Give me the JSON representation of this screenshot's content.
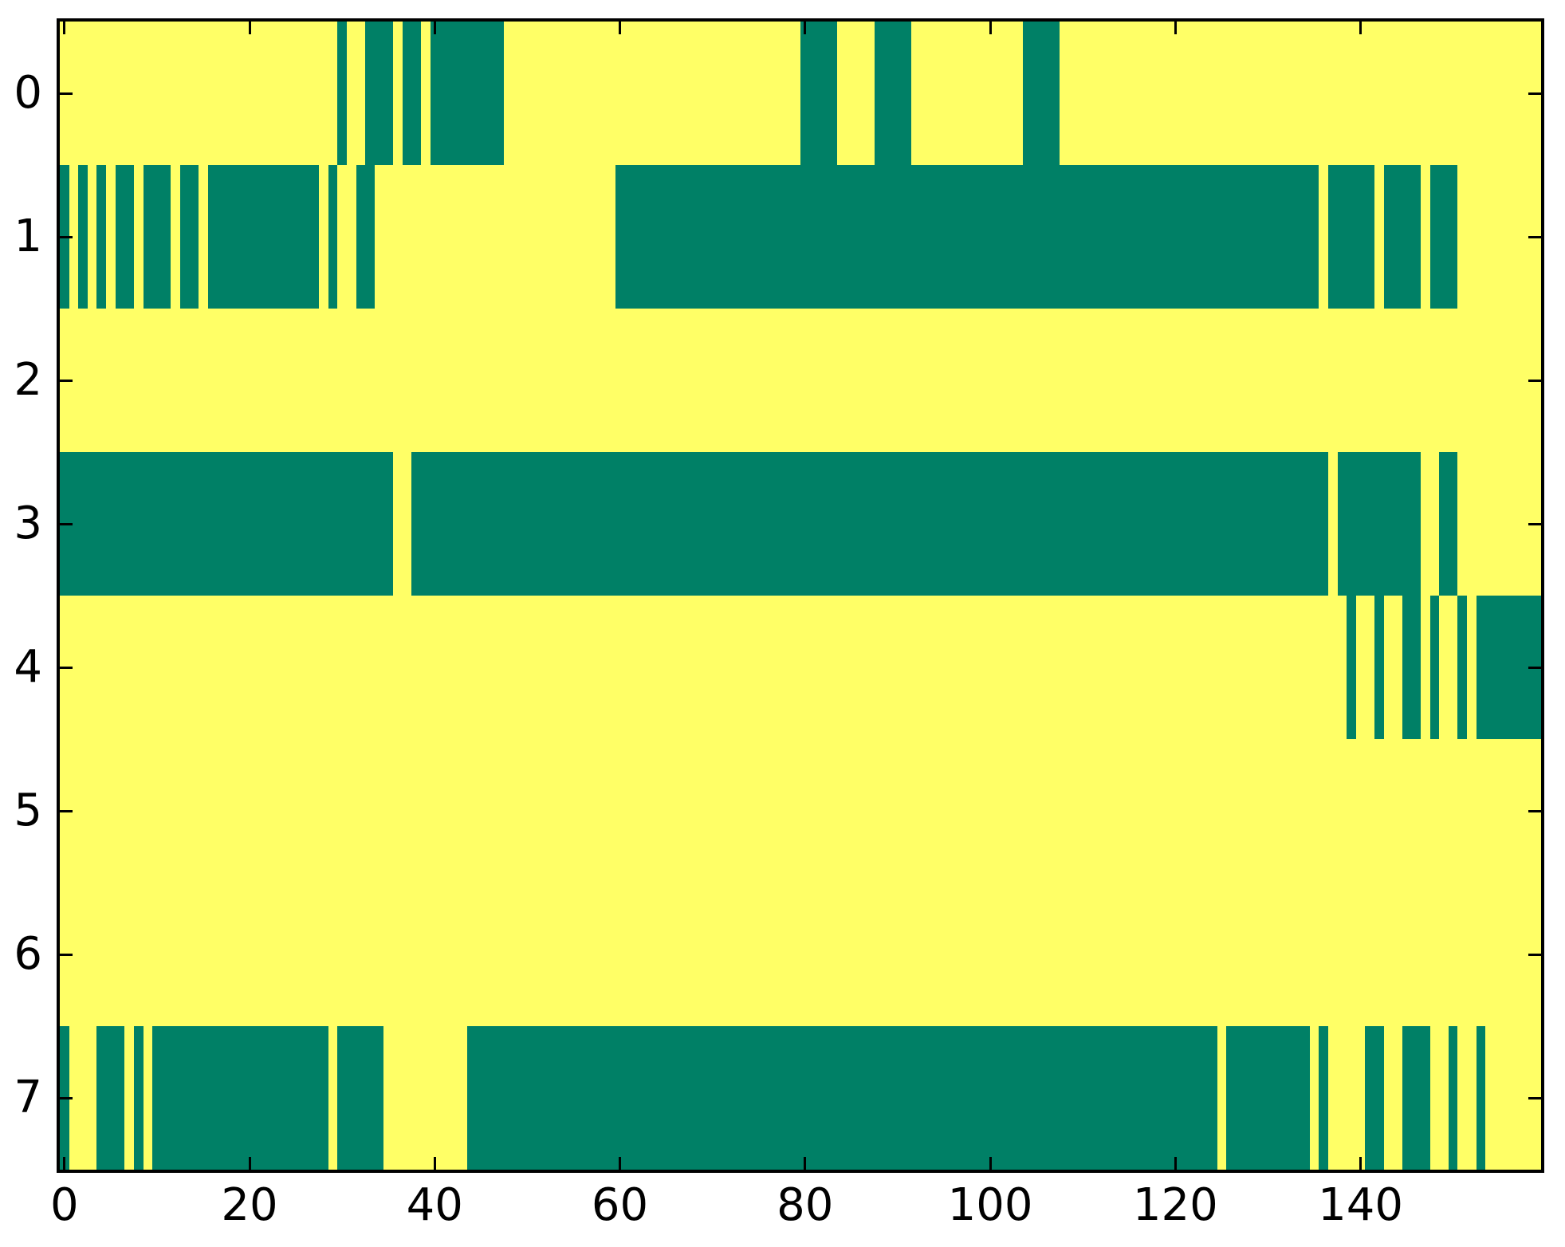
{
  "chart_data": {
    "type": "heatmap",
    "title": "",
    "xlabel": "",
    "ylabel": "",
    "n_rows": 8,
    "n_cols": 160,
    "xlim": [
      -0.5,
      159.5
    ],
    "ylim": [
      7.5,
      -0.5
    ],
    "grid": false,
    "legend": "none",
    "tick_style": "inward, all four sides",
    "x_tick_values": [
      0,
      20,
      40,
      60,
      80,
      100,
      120,
      140
    ],
    "x_tick_labels": [
      "0",
      "20",
      "40",
      "60",
      "80",
      "100",
      "120",
      "140"
    ],
    "y_tick_values": [
      0,
      1,
      2,
      3,
      4,
      5,
      6,
      7
    ],
    "y_tick_labels": [
      "0",
      "1",
      "2",
      "3",
      "4",
      "5",
      "6",
      "7"
    ],
    "colors": {
      "low_value": "#ffff66",
      "high_value": "#008066",
      "axis": "#000000",
      "background": "#ffffff"
    },
    "value_encoding": "binary matrix; segments list inclusive column ranges of high-value (teal) cells per row, all other cells are low-value (yellow)",
    "row_segments": [
      [
        [
          30,
          30
        ],
        [
          33,
          35
        ],
        [
          37,
          38
        ],
        [
          40,
          47
        ],
        [
          80,
          83
        ],
        [
          88,
          91
        ],
        [
          104,
          107
        ]
      ],
      [
        [
          0,
          0
        ],
        [
          2,
          2
        ],
        [
          4,
          4
        ],
        [
          6,
          7
        ],
        [
          9,
          11
        ],
        [
          13,
          14
        ],
        [
          16,
          27
        ],
        [
          29,
          29
        ],
        [
          32,
          33
        ],
        [
          60,
          135
        ],
        [
          137,
          141
        ],
        [
          143,
          146
        ],
        [
          148,
          150
        ]
      ],
      [],
      [
        [
          0,
          35
        ],
        [
          38,
          136
        ],
        [
          138,
          146
        ],
        [
          149,
          150
        ]
      ],
      [
        [
          139,
          139
        ],
        [
          142,
          142
        ],
        [
          145,
          146
        ],
        [
          148,
          148
        ],
        [
          151,
          151
        ],
        [
          153,
          159
        ]
      ],
      [],
      [],
      [
        [
          0,
          0
        ],
        [
          4,
          6
        ],
        [
          8,
          8
        ],
        [
          10,
          28
        ],
        [
          30,
          34
        ],
        [
          44,
          124
        ],
        [
          126,
          134
        ],
        [
          136,
          136
        ],
        [
          141,
          142
        ],
        [
          145,
          147
        ],
        [
          150,
          150
        ],
        [
          153,
          153
        ]
      ]
    ]
  }
}
